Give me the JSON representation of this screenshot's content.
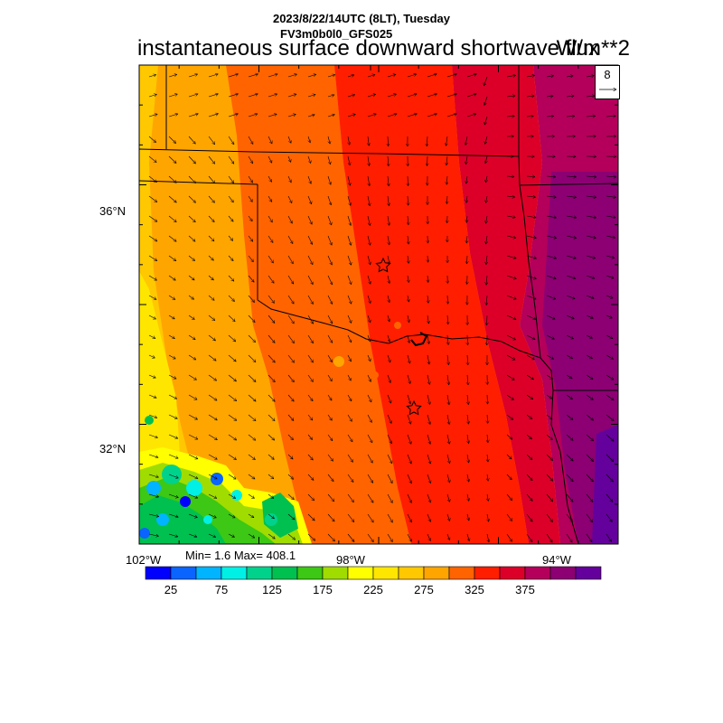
{
  "header": {
    "datetime": "2023/8/22/14UTC (8LT), Tuesday",
    "model": "FV3m0b0l0_GFS025",
    "variable": "instantaneous surface downward shortwave flux",
    "units": "W/m**2"
  },
  "map": {
    "lat_labels": [
      "36°N",
      "32°N"
    ],
    "lon_labels": [
      "102°W",
      "98°W",
      "94°W"
    ],
    "stats": "Min= 1.6 Max= 408.1",
    "vector_reference": "8",
    "markers": [
      "star",
      "star"
    ]
  },
  "colorbar": {
    "labels": [
      "25",
      "75",
      "125",
      "175",
      "225",
      "275",
      "325",
      "375"
    ],
    "colors": [
      "#0000ff",
      "#0a64ff",
      "#00b4ff",
      "#00f0e6",
      "#00d28c",
      "#00c050",
      "#3cc814",
      "#a0dc00",
      "#ffff00",
      "#ffe600",
      "#ffc800",
      "#ffa500",
      "#ff6400",
      "#ff1e00",
      "#dc0028",
      "#b4005a",
      "#8c0073",
      "#64009b"
    ]
  }
}
